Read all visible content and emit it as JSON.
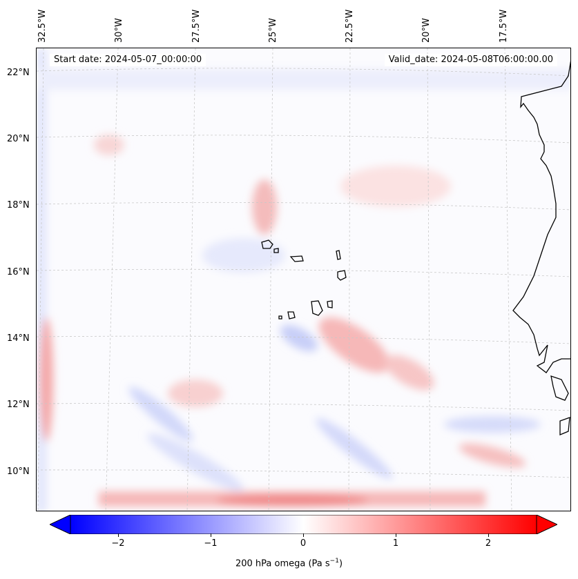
{
  "header": {
    "start_date": "Start date: 2024-05-07_00:00:00",
    "valid_date": "Valid_date: 2024-05-08T06:00:00.00"
  },
  "axes": {
    "longitude_labels": [
      "32.5°W",
      "30°W",
      "27.5°W",
      "25°W",
      "22.5°W",
      "20°W",
      "17.5°W"
    ],
    "latitude_labels": [
      "22°N",
      "20°N",
      "18°N",
      "16°N",
      "14°N",
      "12°N",
      "10°N"
    ]
  },
  "colorbar": {
    "tick_labels": [
      "−2",
      "−1",
      "0",
      "1",
      "2"
    ],
    "label_text": "200 hPa omega (Pa s",
    "label_sup": "−1",
    "label_close": ")",
    "min_color": "#0000ff",
    "mid_color": "#ffffff",
    "max_color": "#ff0000"
  },
  "map": {
    "ocean_color": "#fbfbfe",
    "coastline_color": "#000000",
    "gridline_color": "#c8c8c8"
  }
}
